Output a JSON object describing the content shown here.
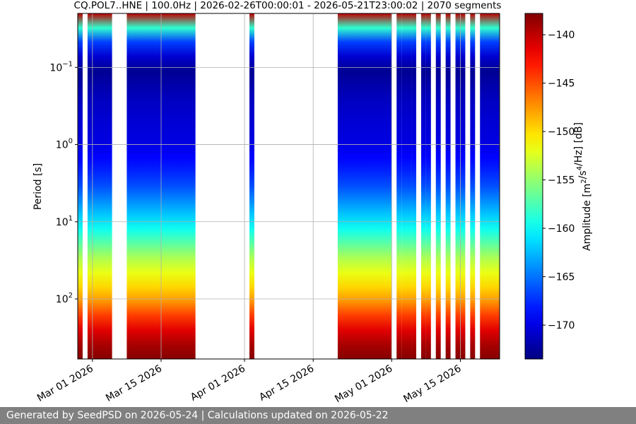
{
  "chart_data": {
    "type": "heatmap",
    "title": "CQ.POL7..HNE | 100.0Hz | 2026-02-26T00:00:01 - 2026-05-21T23:00:02 | 2070 segments",
    "ylabel": "Period [s]",
    "y_scale": "log",
    "y_inverted": true,
    "ylim": [
      0.02,
      600
    ],
    "y_ticks": [
      {
        "value": 0.1,
        "base": "10",
        "exp": "−1"
      },
      {
        "value": 1,
        "base": "10",
        "exp": "0"
      },
      {
        "value": 10,
        "base": "10",
        "exp": "1"
      },
      {
        "value": 100,
        "base": "10",
        "exp": "2"
      }
    ],
    "xlim": [
      "2026-02-26",
      "2026-05-23"
    ],
    "x_ticks": [
      {
        "date": "2026-03-01",
        "label": "Mar 01 2026"
      },
      {
        "date": "2026-03-15",
        "label": "Mar 15 2026"
      },
      {
        "date": "2026-04-01",
        "label": "Apr 01 2026"
      },
      {
        "date": "2026-04-15",
        "label": "Apr 15 2026"
      },
      {
        "date": "2026-05-01",
        "label": "May 01 2026"
      },
      {
        "date": "2026-05-15",
        "label": "May 15 2026"
      }
    ],
    "grid": true,
    "colorbar": {
      "label": "Amplitude [m²/s⁴/Hz] [dB]",
      "colormap": "jet",
      "range": [
        -173.5,
        -137.8
      ],
      "ticks": [
        -140,
        -145,
        -150,
        -155,
        -160,
        -165,
        -170
      ]
    },
    "data_segments": [
      [
        "2026-02-26",
        "2026-02-27"
      ],
      [
        "2026-02-28",
        "2026-03-05"
      ],
      [
        "2026-03-08",
        "2026-03-22"
      ],
      [
        "2026-04-02",
        "2026-04-03"
      ],
      [
        "2026-04-20",
        "2026-05-01"
      ],
      [
        "2026-05-02",
        "2026-05-03"
      ],
      [
        "2026-05-03",
        "2026-05-05"
      ],
      [
        "2026-05-05",
        "2026-05-06"
      ],
      [
        "2026-05-07",
        "2026-05-08"
      ],
      [
        "2026-05-08",
        "2026-05-09"
      ],
      [
        "2026-05-10",
        "2026-05-11"
      ],
      [
        "2026-05-12",
        "2026-05-13"
      ],
      [
        "2026-05-14",
        "2026-05-15"
      ],
      [
        "2026-05-15",
        "2026-05-16"
      ],
      [
        "2026-05-17",
        "2026-05-18"
      ],
      [
        "2026-05-19",
        "2026-05-23"
      ]
    ],
    "spectrum_profile": [
      {
        "period": 0.02,
        "amplitude": -140
      },
      {
        "period": 0.03,
        "amplitude": -158
      },
      {
        "period": 0.05,
        "amplitude": -168
      },
      {
        "period": 0.1,
        "amplitude": -173
      },
      {
        "period": 0.3,
        "amplitude": -171
      },
      {
        "period": 1,
        "amplitude": -170
      },
      {
        "period": 3,
        "amplitude": -167
      },
      {
        "period": 10,
        "amplitude": -161
      },
      {
        "period": 30,
        "amplitude": -154
      },
      {
        "period": 100,
        "amplitude": -148
      },
      {
        "period": 300,
        "amplitude": -140
      },
      {
        "period": 600,
        "amplitude": -138
      }
    ]
  },
  "footer": {
    "text": "Generated by SeedPSD on 2026-05-24 | Calculations updated on 2026-05-22"
  }
}
